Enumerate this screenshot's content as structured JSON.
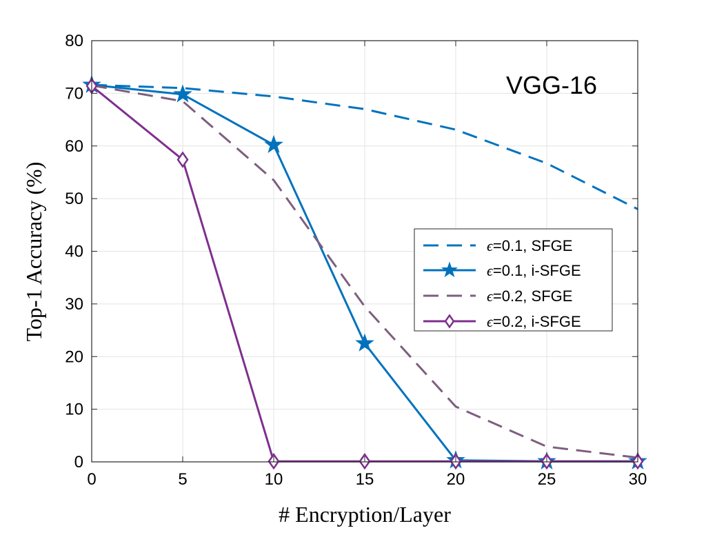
{
  "chart_data": {
    "type": "line",
    "title": "",
    "annotation": "VGG-16",
    "xlabel": "# Encryption/Layer",
    "ylabel": "Top-1 Accuracy (%)",
    "xlim": [
      0,
      30
    ],
    "ylim": [
      0,
      80
    ],
    "xticks": [
      0,
      5,
      10,
      15,
      20,
      25,
      30
    ],
    "yticks": [
      0,
      10,
      20,
      30,
      40,
      50,
      60,
      70,
      80
    ],
    "grid": true,
    "legend_position": "center-right",
    "series": [
      {
        "name": "=0.1, SFGE",
        "legend_symbol": "ϵ",
        "color": "#0072BD",
        "dash": "dashed",
        "marker": "none",
        "x": [
          0,
          5,
          10,
          15,
          20,
          25,
          30
        ],
        "y": [
          71.6,
          71.0,
          69.4,
          67.0,
          63.1,
          56.7,
          48.0
        ]
      },
      {
        "name": "=0.1, i-SFGE",
        "legend_symbol": "ϵ",
        "color": "#0072BD",
        "dash": "solid",
        "marker": "star",
        "x": [
          0,
          5,
          10,
          15,
          20,
          25,
          30
        ],
        "y": [
          71.6,
          69.8,
          60.2,
          22.5,
          0.3,
          0.1,
          0.1
        ]
      },
      {
        "name": "=0.2, SFGE",
        "legend_symbol": "ϵ",
        "color": "#7E5E7E",
        "dash": "dashed",
        "marker": "none",
        "x": [
          0,
          5,
          10,
          15,
          20,
          25,
          30
        ],
        "y": [
          71.5,
          68.5,
          53.5,
          29.5,
          10.5,
          2.9,
          0.8
        ]
      },
      {
        "name": "=0.2, i-SFGE",
        "legend_symbol": "ϵ",
        "color": "#7E2F8E",
        "dash": "solid",
        "marker": "diamond",
        "x": [
          0,
          5,
          10,
          15,
          20,
          25,
          30
        ],
        "y": [
          71.4,
          57.4,
          0.1,
          0.1,
          0.1,
          0.1,
          0.1
        ]
      }
    ]
  }
}
